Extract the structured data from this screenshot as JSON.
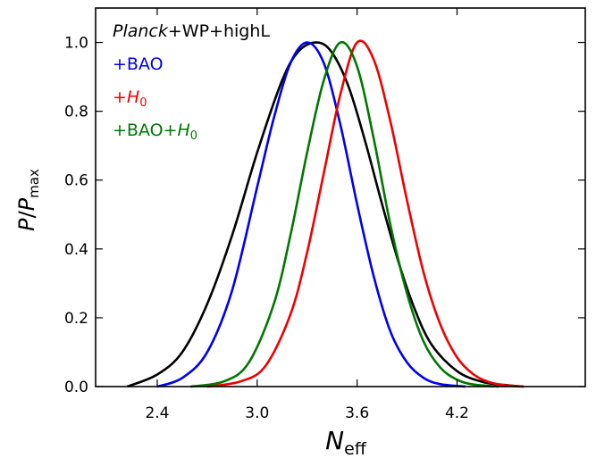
{
  "chart_data": {
    "type": "line",
    "title": "",
    "xlabel": {
      "main": "N",
      "sub": "eff"
    },
    "ylabel": {
      "p": "P",
      "slash": "/",
      "pmax": "P",
      "sub": "max"
    },
    "xlim": [
      2.03,
      4.97
    ],
    "ylim": [
      0.0,
      1.1
    ],
    "x_ticks": [
      2.4,
      3.0,
      3.6,
      4.2
    ],
    "x_tick_labels": [
      "2.4",
      "3.0",
      "3.6",
      "4.2"
    ],
    "y_ticks": [
      0.0,
      0.2,
      0.4,
      0.6,
      0.8,
      1.0
    ],
    "y_tick_labels": [
      "0.0",
      "0.2",
      "0.4",
      "0.6",
      "0.8",
      "1.0"
    ],
    "grid": false,
    "legend_position": "top-left",
    "legend_entries": [
      {
        "parts": [
          {
            "text": "Planck",
            "italic": true
          },
          {
            "text": "+WP+highL"
          }
        ],
        "color": "#000000"
      },
      {
        "parts": [
          {
            "text": "+BAO"
          }
        ],
        "color": "#0000ee"
      },
      {
        "parts": [
          {
            "text": "+"
          },
          {
            "text": "H",
            "italic": true
          },
          {
            "text": "0",
            "sub": true
          }
        ],
        "color": "#ee0000"
      },
      {
        "parts": [
          {
            "text": "+BAO+"
          },
          {
            "text": "H",
            "italic": true
          },
          {
            "text": "0",
            "sub": true
          }
        ],
        "color": "#007700"
      }
    ],
    "series": [
      {
        "color": "#000000",
        "points": [
          [
            2.22,
            0.0
          ],
          [
            2.4,
            0.035
          ],
          [
            2.55,
            0.1
          ],
          [
            2.7,
            0.24
          ],
          [
            2.85,
            0.44
          ],
          [
            3.0,
            0.68
          ],
          [
            3.15,
            0.89
          ],
          [
            3.25,
            0.975
          ],
          [
            3.36,
            1.0
          ],
          [
            3.45,
            0.97
          ],
          [
            3.55,
            0.87
          ],
          [
            3.65,
            0.71
          ],
          [
            3.75,
            0.53
          ],
          [
            3.85,
            0.36
          ],
          [
            3.95,
            0.22
          ],
          [
            4.05,
            0.12
          ],
          [
            4.2,
            0.045
          ],
          [
            4.35,
            0.014
          ],
          [
            4.5,
            0.004
          ],
          [
            4.6,
            0.0
          ]
        ]
      },
      {
        "color": "#0000ee",
        "points": [
          [
            2.4,
            0.0
          ],
          [
            2.55,
            0.025
          ],
          [
            2.7,
            0.1
          ],
          [
            2.85,
            0.28
          ],
          [
            3.0,
            0.58
          ],
          [
            3.1,
            0.78
          ],
          [
            3.2,
            0.94
          ],
          [
            3.3,
            1.0
          ],
          [
            3.4,
            0.94
          ],
          [
            3.5,
            0.76
          ],
          [
            3.6,
            0.53
          ],
          [
            3.7,
            0.32
          ],
          [
            3.8,
            0.16
          ],
          [
            3.9,
            0.07
          ],
          [
            4.0,
            0.025
          ],
          [
            4.1,
            0.007
          ],
          [
            4.25,
            0.0
          ]
        ]
      },
      {
        "color": "#ee0000",
        "points": [
          [
            2.7,
            0.0
          ],
          [
            2.9,
            0.015
          ],
          [
            3.05,
            0.06
          ],
          [
            3.2,
            0.21
          ],
          [
            3.3,
            0.39
          ],
          [
            3.4,
            0.62
          ],
          [
            3.5,
            0.85
          ],
          [
            3.6,
            1.0
          ],
          [
            3.7,
            0.95
          ],
          [
            3.8,
            0.77
          ],
          [
            3.9,
            0.54
          ],
          [
            4.0,
            0.33
          ],
          [
            4.1,
            0.18
          ],
          [
            4.2,
            0.085
          ],
          [
            4.3,
            0.035
          ],
          [
            4.4,
            0.012
          ],
          [
            4.5,
            0.003
          ],
          [
            4.6,
            0.0
          ]
        ]
      },
      {
        "color": "#007700",
        "points": [
          [
            2.6,
            0.0
          ],
          [
            2.8,
            0.015
          ],
          [
            2.95,
            0.07
          ],
          [
            3.1,
            0.24
          ],
          [
            3.2,
            0.44
          ],
          [
            3.3,
            0.68
          ],
          [
            3.4,
            0.89
          ],
          [
            3.5,
            1.0
          ],
          [
            3.6,
            0.93
          ],
          [
            3.7,
            0.72
          ],
          [
            3.8,
            0.47
          ],
          [
            3.9,
            0.27
          ],
          [
            4.0,
            0.13
          ],
          [
            4.1,
            0.055
          ],
          [
            4.2,
            0.02
          ],
          [
            4.3,
            0.006
          ],
          [
            4.45,
            0.0
          ]
        ]
      }
    ]
  }
}
